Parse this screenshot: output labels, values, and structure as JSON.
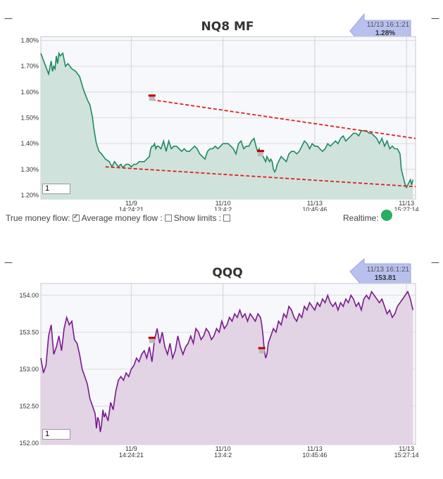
{
  "chart_data": [
    {
      "type": "area",
      "title": "NQ8 MF",
      "y_ticks": [
        "1.80%",
        "1.70%",
        "1.60%",
        "1.50%",
        "1.40%",
        "1.30%",
        "1.20%"
      ],
      "y_tick_values": [
        1.8,
        1.7,
        1.6,
        1.5,
        1.4,
        1.3,
        1.2
      ],
      "ylim": [
        1.185,
        1.815
      ],
      "x_ticks": [
        {
          "date": "11/9",
          "time": "14:24:21",
          "x": 70
        },
        {
          "date": "11/10",
          "time": "13:4:2",
          "x": 141
        },
        {
          "date": "11/13",
          "time": "10:45:46",
          "x": 212
        },
        {
          "date": "11/13",
          "time": "15:27:14",
          "x": 283
        }
      ],
      "xlim": [
        0,
        290
      ],
      "colors": {
        "line": "#1e8a5e",
        "fill": "#cfe3dc",
        "trend": "#e02020",
        "marker": "#c00000"
      },
      "series": [
        {
          "x": [
            0,
            3,
            6,
            8,
            9,
            10,
            11,
            12,
            13,
            14,
            15,
            17,
            19,
            21,
            24,
            27,
            30,
            33,
            36,
            38,
            40,
            41,
            42,
            43,
            45,
            47,
            50,
            53,
            55,
            57,
            60,
            62,
            63,
            64,
            66,
            68,
            70,
            72,
            74,
            76,
            78,
            80,
            82,
            84,
            85,
            86,
            87,
            88,
            89,
            90,
            91,
            93,
            95,
            97,
            99,
            101,
            103,
            105,
            107,
            109,
            111,
            113,
            115,
            117,
            119,
            121,
            123,
            125,
            127,
            129,
            131,
            133,
            135,
            137,
            139,
            141,
            143,
            145,
            147,
            149,
            151,
            153,
            155,
            157,
            159,
            161,
            163,
            165,
            167,
            168,
            169,
            170,
            171,
            172,
            173,
            174,
            175,
            176,
            177,
            178,
            179,
            180,
            181,
            182,
            183,
            184,
            186,
            188,
            190,
            192,
            194,
            196,
            198,
            200,
            202,
            204,
            206,
            208,
            210,
            212,
            214,
            216,
            218,
            220,
            222,
            224,
            226,
            228,
            230,
            232,
            234,
            236,
            238,
            240,
            242,
            244,
            246,
            248,
            250,
            252,
            254,
            256,
            258,
            260,
            262,
            264,
            266,
            268,
            270,
            272,
            274,
            276,
            277,
            278,
            279,
            280,
            281,
            282,
            283,
            284,
            285,
            286,
            287,
            288
          ],
          "values": [
            1.75,
            1.71,
            1.67,
            1.72,
            1.68,
            1.7,
            1.69,
            1.74,
            1.71,
            1.75,
            1.74,
            1.75,
            1.7,
            1.71,
            1.69,
            1.68,
            1.66,
            1.61,
            1.57,
            1.55,
            1.5,
            1.46,
            1.43,
            1.4,
            1.37,
            1.36,
            1.34,
            1.33,
            1.31,
            1.33,
            1.31,
            1.32,
            1.31,
            1.31,
            1.32,
            1.32,
            1.31,
            1.32,
            1.32,
            1.33,
            1.33,
            1.33,
            1.34,
            1.35,
            1.38,
            1.39,
            1.39,
            1.4,
            1.38,
            1.39,
            1.39,
            1.38,
            1.41,
            1.37,
            1.41,
            1.38,
            1.39,
            1.39,
            1.38,
            1.37,
            1.38,
            1.37,
            1.37,
            1.38,
            1.39,
            1.38,
            1.36,
            1.35,
            1.34,
            1.37,
            1.38,
            1.38,
            1.39,
            1.38,
            1.39,
            1.4,
            1.4,
            1.4,
            1.39,
            1.38,
            1.36,
            1.4,
            1.41,
            1.38,
            1.39,
            1.39,
            1.41,
            1.42,
            1.38,
            1.37,
            1.38,
            1.36,
            1.36,
            1.35,
            1.34,
            1.33,
            1.35,
            1.34,
            1.33,
            1.34,
            1.33,
            1.3,
            1.29,
            1.3,
            1.32,
            1.33,
            1.35,
            1.34,
            1.33,
            1.36,
            1.37,
            1.37,
            1.36,
            1.37,
            1.39,
            1.41,
            1.4,
            1.38,
            1.4,
            1.39,
            1.39,
            1.38,
            1.37,
            1.38,
            1.4,
            1.39,
            1.4,
            1.41,
            1.4,
            1.42,
            1.43,
            1.41,
            1.42,
            1.43,
            1.44,
            1.44,
            1.43,
            1.45,
            1.45,
            1.45,
            1.44,
            1.44,
            1.43,
            1.42,
            1.4,
            1.42,
            1.39,
            1.41,
            1.38,
            1.39,
            1.38,
            1.38,
            1.37,
            1.36,
            1.3,
            1.28,
            1.26,
            1.24,
            1.23,
            1.24,
            1.25,
            1.26,
            1.24,
            1.26
          ]
        }
      ],
      "trend_lines": [
        {
          "x": [
            86,
            290
          ],
          "values": [
            1.57,
            1.42
          ]
        },
        {
          "x": [
            50,
            290
          ],
          "values": [
            1.31,
            1.233
          ]
        }
      ],
      "markers": [
        {
          "x": 86,
          "value": 1.585
        },
        {
          "x": 170,
          "value": 1.37
        }
      ],
      "input_value": "1",
      "badge": {
        "time": "11/13 16:1:21",
        "value": "1.28%"
      }
    },
    {
      "type": "area",
      "title": "QQQ",
      "y_ticks": [
        "154.00",
        "153.50",
        "153.00",
        "152.50",
        "152.00"
      ],
      "y_tick_values": [
        154.0,
        153.5,
        153.0,
        152.5,
        152.0
      ],
      "ylim": [
        151.98,
        154.16
      ],
      "x_ticks": [
        {
          "date": "11/9",
          "time": "14:24:21",
          "x": 70
        },
        {
          "date": "11/10",
          "time": "13:4:2",
          "x": 141
        },
        {
          "date": "11/13",
          "time": "10:45:46",
          "x": 212
        },
        {
          "date": "11/13",
          "time": "15:27:14",
          "x": 283
        }
      ],
      "xlim": [
        0,
        290
      ],
      "colors": {
        "line": "#7a1a8e",
        "fill": "#e2d3e5",
        "marker": "#c00000"
      },
      "series": [
        {
          "x": [
            0,
            2,
            4,
            6,
            8,
            10,
            12,
            14,
            16,
            18,
            20,
            22,
            24,
            26,
            28,
            30,
            32,
            34,
            36,
            38,
            40,
            41,
            42,
            43,
            44,
            45,
            46,
            47,
            48,
            49,
            50,
            52,
            54,
            56,
            58,
            60,
            62,
            64,
            66,
            68,
            70,
            72,
            74,
            76,
            78,
            80,
            82,
            84,
            86,
            88,
            90,
            92,
            94,
            96,
            98,
            100,
            102,
            104,
            106,
            108,
            110,
            112,
            114,
            116,
            118,
            120,
            122,
            124,
            126,
            128,
            130,
            132,
            134,
            136,
            138,
            140,
            142,
            144,
            146,
            148,
            150,
            152,
            154,
            156,
            158,
            160,
            162,
            164,
            166,
            168,
            170,
            171,
            172,
            173,
            174,
            175,
            176,
            177,
            178,
            180,
            182,
            184,
            186,
            188,
            190,
            192,
            194,
            196,
            198,
            200,
            202,
            204,
            206,
            208,
            210,
            212,
            214,
            216,
            218,
            220,
            222,
            224,
            226,
            228,
            230,
            232,
            234,
            236,
            238,
            240,
            242,
            244,
            246,
            248,
            250,
            252,
            254,
            256,
            258,
            260,
            262,
            264,
            266,
            268,
            270,
            272,
            274,
            276,
            278,
            280,
            282,
            284,
            286,
            288
          ],
          "values": [
            153.15,
            152.95,
            153.05,
            153.45,
            153.6,
            153.2,
            153.3,
            153.45,
            153.25,
            153.55,
            153.7,
            153.6,
            153.65,
            153.4,
            153.35,
            153.2,
            153.0,
            152.9,
            152.8,
            152.6,
            152.5,
            152.45,
            152.4,
            152.2,
            152.35,
            152.3,
            152.15,
            152.25,
            152.45,
            152.35,
            152.4,
            152.3,
            152.55,
            152.45,
            152.7,
            152.85,
            152.9,
            152.85,
            152.95,
            152.9,
            153.0,
            153.05,
            153.15,
            153.1,
            153.2,
            153.25,
            153.15,
            153.3,
            153.1,
            153.4,
            153.55,
            153.35,
            153.5,
            153.3,
            153.2,
            153.35,
            153.15,
            153.25,
            153.45,
            153.3,
            153.2,
            153.3,
            153.35,
            153.45,
            153.35,
            153.55,
            153.5,
            153.4,
            153.45,
            153.55,
            153.5,
            153.4,
            153.45,
            153.55,
            153.5,
            153.65,
            153.55,
            153.6,
            153.7,
            153.65,
            153.75,
            153.7,
            153.8,
            153.7,
            153.75,
            153.65,
            153.75,
            153.7,
            153.65,
            153.75,
            153.7,
            153.6,
            153.45,
            153.25,
            153.15,
            153.2,
            153.35,
            153.4,
            153.45,
            153.55,
            153.5,
            153.65,
            153.6,
            153.75,
            153.7,
            153.85,
            153.8,
            153.7,
            153.65,
            153.75,
            153.7,
            153.85,
            153.8,
            153.9,
            153.85,
            153.8,
            153.9,
            153.85,
            153.95,
            153.9,
            154.0,
            153.9,
            153.85,
            153.9,
            153.8,
            153.9,
            153.85,
            153.95,
            153.9,
            154.0,
            153.95,
            153.85,
            153.9,
            153.8,
            153.95,
            154.0,
            153.95,
            154.05,
            154.0,
            153.95,
            153.9,
            153.95,
            153.85,
            153.75,
            153.8,
            153.7,
            153.75,
            153.85,
            153.9,
            153.95,
            154.0,
            154.05,
            153.95,
            153.8
          ]
        }
      ],
      "markers": [
        {
          "x": 86,
          "value": 153.42
        },
        {
          "x": 171,
          "value": 153.28
        }
      ],
      "input_value": "1",
      "badge": {
        "time": "11/13 16:1:21",
        "value": "153.81"
      }
    }
  ],
  "controls": {
    "true_money_flow_label": "True money flow:",
    "average_money_flow_label": "Average money flow :",
    "show_limits_label": "Show limits :",
    "realtime_label": "Realtime:"
  },
  "corner_mark": "—"
}
